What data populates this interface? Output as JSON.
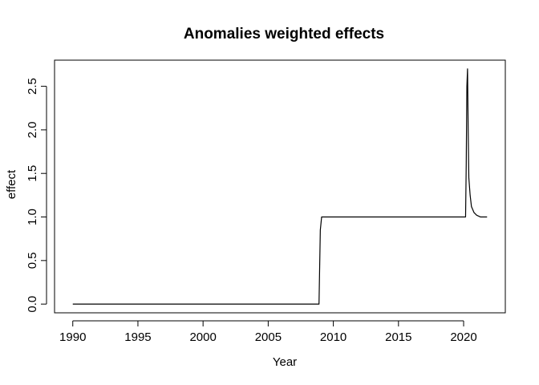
{
  "chart_data": {
    "type": "line",
    "title": "Anomalies weighted effects",
    "xlabel": "Year",
    "ylabel": "effect",
    "xlim": [
      1988.6,
      2023.2
    ],
    "ylim": [
      -0.1,
      2.8
    ],
    "x_ticks": [
      1990,
      1995,
      2000,
      2005,
      2010,
      2015,
      2020
    ],
    "x_tick_labels": [
      "1990",
      "1995",
      "2000",
      "2005",
      "2010",
      "2015",
      "2020"
    ],
    "y_ticks": [
      0.0,
      0.5,
      1.0,
      1.5,
      2.0,
      2.5
    ],
    "y_tick_labels": [
      "0.0",
      "0.5",
      "1.0",
      "1.5",
      "2.0",
      "2.5"
    ],
    "grid": false,
    "legend": "none",
    "series": [
      {
        "color": "#000000",
        "x": [
          1990.0,
          2008.9,
          2009.0,
          2009.1,
          2020.15,
          2020.2,
          2020.25,
          2020.3,
          2020.35,
          2020.4,
          2020.5,
          2020.6,
          2020.8,
          2021.0,
          2021.3,
          2021.8
        ],
        "y": [
          0.0,
          0.0,
          0.85,
          1.0,
          1.0,
          1.6,
          2.5,
          2.7,
          2.0,
          1.45,
          1.25,
          1.12,
          1.05,
          1.02,
          1.0,
          1.0
        ]
      }
    ]
  }
}
